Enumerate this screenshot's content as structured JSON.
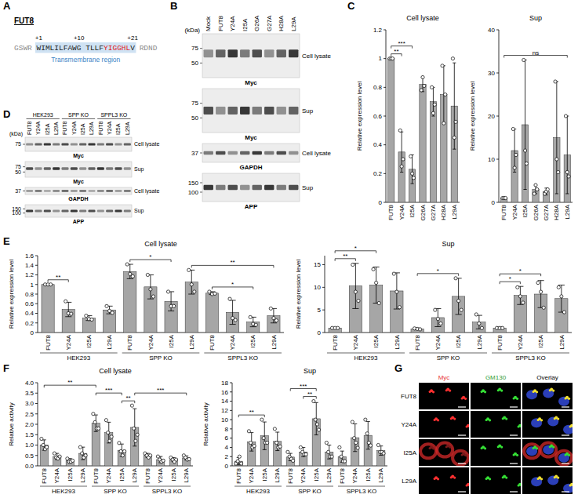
{
  "panel_labels": [
    "A",
    "B",
    "C",
    "D",
    "E",
    "F",
    "G"
  ],
  "sequence": {
    "title": "FUT8",
    "segments": [
      {
        "text": "GSWR",
        "style": "flank"
      },
      {
        "text": "WIMLILFAWG TLLF",
        "style": "tm"
      },
      {
        "text": "YIGGHL",
        "style": "tm_red"
      },
      {
        "text": "V",
        "style": "tm"
      },
      {
        "text": "RDND",
        "style": "flank"
      }
    ],
    "positions": [
      "+1",
      "+10",
      "+21"
    ],
    "region_label": "Transmembrane region"
  },
  "blot_b": {
    "lanes": [
      "Mock",
      "FUT8",
      "Y24A",
      "I25A",
      "G26A",
      "G27A",
      "H28A",
      "L29A"
    ],
    "unit": "(kDa)",
    "rows": [
      {
        "markers": [
          75,
          50
        ],
        "fraction": "Cell lysate",
        "antibody": "Myc"
      },
      {
        "markers": [
          75,
          50
        ],
        "fraction": "Sup",
        "antibody": "Myc"
      },
      {
        "markers": [
          37
        ],
        "fraction": "Cell lysate",
        "antibody": "GAPDH"
      },
      {
        "markers": [
          150,
          100
        ],
        "fraction": "Sup",
        "antibody": "APP"
      }
    ]
  },
  "blot_d": {
    "groups": [
      "HEK293",
      "SPP KO",
      "SPPL3 KO"
    ],
    "lanes": [
      "FUT8",
      "Y24A",
      "I25A",
      "L29A"
    ],
    "unit": "(kDa)",
    "rows": [
      {
        "markers": [
          75
        ],
        "fraction": "Cell lysate",
        "antibody": "Myc"
      },
      {
        "markers": [
          75,
          50
        ],
        "fraction": "Sup",
        "antibody": "Myc"
      },
      {
        "markers": [
          37
        ],
        "fraction": "Cell lysate",
        "antibody": "GAPDH"
      },
      {
        "markers": [
          150,
          100
        ],
        "fraction": "Sup",
        "antibody": "APP"
      }
    ]
  },
  "chart_data": [
    {
      "type": "bar",
      "title": "Cell lysate",
      "y_label": "Relative expression level",
      "color": "#a6a6a6",
      "categories": [
        "FUT8",
        "Y24A",
        "I25A",
        "G26A",
        "G27A",
        "H28A",
        "L29A"
      ],
      "values": [
        1.0,
        0.35,
        0.23,
        0.82,
        0.7,
        0.75,
        0.67
      ],
      "errors": [
        0,
        0.14,
        0.1,
        0.05,
        0.1,
        0.2,
        0.3
      ],
      "points": [
        [
          1,
          1,
          1
        ],
        [
          0.5,
          0.25,
          0.3
        ],
        [
          0.32,
          0.2,
          0.17
        ],
        [
          0.78,
          0.87,
          0.81
        ],
        [
          0.8,
          0.62,
          0.68
        ],
        [
          0.95,
          0.55,
          0.75
        ],
        [
          1.0,
          0.45,
          0.56
        ]
      ],
      "ylim": [
        0,
        1.2
      ],
      "yticks": [
        0,
        0.2,
        0.4,
        0.6,
        0.8,
        1,
        1.2
      ],
      "significance": [
        {
          "from": 0,
          "to": 1,
          "label": "**"
        },
        {
          "from": 0,
          "to": 2,
          "label": "***"
        }
      ]
    },
    {
      "type": "bar",
      "title": "Sup",
      "y_label": "Relative expression level",
      "color": "#a6a6a6",
      "categories": [
        "FUT8",
        "Y24A",
        "I25A",
        "G26A",
        "G27A",
        "H28A",
        "L29A"
      ],
      "values": [
        1,
        12,
        18,
        3,
        2.5,
        15,
        11
      ],
      "errors": [
        0,
        5,
        15,
        1,
        0.8,
        13,
        9
      ],
      "points": [
        [
          1,
          1,
          1
        ],
        [
          17,
          8,
          11
        ],
        [
          33,
          12,
          9
        ],
        [
          2,
          4,
          3
        ],
        [
          2,
          2.5,
          3
        ],
        [
          28,
          10,
          7
        ],
        [
          20,
          7,
          6
        ]
      ],
      "ylim": [
        0,
        40
      ],
      "yticks": [
        0,
        10,
        20,
        30,
        40
      ],
      "significance": [
        {
          "from": 0,
          "to": 6,
          "label": "ns"
        }
      ]
    },
    {
      "type": "bar",
      "title": "Cell lysate",
      "y_label": "Relative expression level",
      "color": "#a6a6a6",
      "categories": [
        "FUT8",
        "Y24A",
        "I25A",
        "L29A",
        "FUT8",
        "Y24A",
        "I25A",
        "L29A",
        "FUT8",
        "Y24A",
        "I25A",
        "L29A"
      ],
      "groups": [
        "HEK293",
        "SPP KO",
        "SPPL3 KO"
      ],
      "values": [
        1.0,
        0.48,
        0.3,
        0.47,
        1.27,
        0.95,
        0.65,
        1.05,
        0.82,
        0.42,
        0.22,
        0.35
      ],
      "errors": [
        0,
        0.15,
        0.05,
        0.08,
        0.15,
        0.25,
        0.2,
        0.25,
        0.03,
        0.25,
        0.1,
        0.15
      ],
      "points": [
        [
          1,
          1,
          1
        ],
        [
          0.65,
          0.4,
          0.39
        ],
        [
          0.35,
          0.28,
          0.27
        ],
        [
          0.55,
          0.45,
          0.41
        ],
        [
          1.42,
          1.22,
          1.17
        ],
        [
          1.2,
          0.9,
          0.75
        ],
        [
          0.85,
          0.55,
          0.55
        ],
        [
          1.3,
          1.0,
          0.85
        ],
        [
          0.85,
          0.8,
          0.81
        ],
        [
          0.7,
          0.3,
          0.26
        ],
        [
          0.32,
          0.18,
          0.16
        ],
        [
          0.5,
          0.3,
          0.25
        ]
      ],
      "ylim": [
        0,
        1.6
      ],
      "yticks": [
        0,
        0.2,
        0.4,
        0.6,
        0.8,
        1,
        1.2,
        1.4,
        1.6
      ],
      "significance": [
        {
          "from": 0,
          "to": 1,
          "label": "**"
        },
        {
          "from": 4,
          "to": 6,
          "label": "*"
        },
        {
          "from": 8,
          "to": 10,
          "label": "*"
        },
        {
          "from": 7,
          "to": 11,
          "label": "**"
        }
      ]
    },
    {
      "type": "bar",
      "title": "Sup",
      "y_label": "Relative expression level",
      "color": "#a6a6a6",
      "categories": [
        "FUT8",
        "Y24A",
        "I25A",
        "L29A",
        "FUT8",
        "Y24A",
        "I25A",
        "L29A",
        "FUT8",
        "Y24A",
        "I25A",
        "L29A"
      ],
      "groups": [
        "HEK293",
        "SPP KO",
        "SPPL3 KO"
      ],
      "values": [
        1,
        10.3,
        10.5,
        9.2,
        0.8,
        3.3,
        8,
        2.3,
        1,
        8.2,
        8.5,
        7.5
      ],
      "errors": [
        0,
        5,
        4,
        4,
        0.2,
        2,
        4,
        1.5,
        0.2,
        2,
        3,
        3
      ],
      "points": [
        [
          1,
          1,
          1
        ],
        [
          15,
          9,
          7
        ],
        [
          14,
          11,
          6.5
        ],
        [
          13,
          9,
          5.6
        ],
        [
          0.9,
          0.8,
          0.7
        ],
        [
          5,
          3,
          2
        ],
        [
          12,
          7,
          5
        ],
        [
          4,
          2,
          1
        ],
        [
          1,
          1,
          1
        ],
        [
          10,
          8,
          6.6
        ],
        [
          11,
          9,
          5.5
        ],
        [
          10,
          8,
          4.5
        ]
      ],
      "ylim": [
        0,
        17
      ],
      "yticks": [
        0,
        5,
        10,
        15
      ],
      "significance": [
        {
          "from": 0,
          "to": 1,
          "label": "**"
        },
        {
          "from": 0,
          "to": 2,
          "label": "*"
        },
        {
          "from": 4,
          "to": 6,
          "label": "*"
        },
        {
          "from": 8,
          "to": 9,
          "label": "*"
        },
        {
          "from": 8,
          "to": 10,
          "label": "*"
        }
      ]
    },
    {
      "type": "bar",
      "title": "Cell lysate",
      "y_label": "Relative activity",
      "color": "#a6a6a6",
      "categories": [
        "FUT8",
        "Y24A",
        "I25A",
        "L29A",
        "FUT8",
        "Y24A",
        "I25A",
        "L29A",
        "FUT8",
        "Y24A",
        "I25A",
        "L29A"
      ],
      "groups": [
        "HEK293",
        "SPP KO",
        "SPPL3 KO"
      ],
      "values": [
        1.0,
        0.45,
        0.25,
        0.6,
        2.05,
        1.6,
        0.75,
        1.85,
        0.5,
        0.3,
        0.3,
        0.38
      ],
      "errors": [
        0.25,
        0.15,
        0.1,
        0.3,
        0.4,
        0.5,
        0.3,
        0.9,
        0.1,
        0.15,
        0.1,
        0.1
      ],
      "points": [
        [
          1.3,
          1.0,
          0.8,
          0.9
        ],
        [
          0.6,
          0.4,
          0.35,
          0.45
        ],
        [
          0.35,
          0.2,
          0.2,
          0.25
        ],
        [
          0.9,
          0.6,
          0.4,
          0.5
        ],
        [
          2.5,
          2.1,
          1.8,
          1.8
        ],
        [
          2.2,
          1.6,
          1.2,
          1.4
        ],
        [
          1.1,
          0.7,
          0.5,
          0.7
        ],
        [
          2.9,
          1.8,
          1.2,
          1.5
        ],
        [
          0.6,
          0.5,
          0.4,
          0.5
        ],
        [
          0.45,
          0.3,
          0.2,
          0.25
        ],
        [
          0.4,
          0.3,
          0.2,
          0.3
        ],
        [
          0.5,
          0.4,
          0.3,
          0.32
        ]
      ],
      "ylim": [
        0,
        4.0
      ],
      "yticks": [
        {
          "value": 0,
          "label": "0.0"
        },
        {
          "value": 0.5,
          "label": "0.5"
        },
        {
          "value": 1,
          "label": "1.0"
        },
        {
          "value": 1.5,
          "label": "1.5"
        },
        {
          "value": 2,
          "label": "2.0"
        },
        {
          "value": 2.5,
          "label": "2.5"
        },
        {
          "value": 3,
          "label": "3.0"
        },
        {
          "value": 3.5,
          "label": "3.5"
        },
        {
          "value": 4,
          "label": "4.0"
        }
      ],
      "significance": [
        {
          "from": 6,
          "to": 7,
          "label": "**"
        },
        {
          "from": 4,
          "to": 6,
          "label": "***"
        },
        {
          "from": 0,
          "to": 4,
          "label": "**"
        },
        {
          "from": 7,
          "to": 11,
          "label": "***"
        }
      ]
    },
    {
      "type": "bar",
      "title": "Sup",
      "y_label": "Relative activity",
      "color": "#a6a6a6",
      "categories": [
        "FUT8",
        "Y24A",
        "I25A",
        "L29A",
        "FUT8",
        "Y24A",
        "I25A",
        "L29A",
        "FUT8",
        "Y24A",
        "I25A",
        "L29A"
      ],
      "groups": [
        "HEK293",
        "SPP KO",
        "SPPL3 KO"
      ],
      "values": [
        1,
        5.2,
        6.5,
        5.3,
        1.9,
        3,
        10.2,
        3,
        2,
        6.1,
        6.6,
        3.3
      ],
      "errors": [
        0.8,
        2,
        3,
        2,
        0.8,
        1,
        3.5,
        1.5,
        1.2,
        3,
        3,
        1
      ],
      "points": [
        [
          0.5,
          1,
          2,
          0.5
        ],
        [
          7.5,
          5,
          4,
          4.3
        ],
        [
          10,
          6,
          5,
          5
        ],
        [
          8,
          5,
          4,
          4.2
        ],
        [
          3,
          2,
          1.5,
          1.1
        ],
        [
          4,
          3,
          2.5,
          2.5
        ],
        [
          14,
          10,
          9,
          7.8
        ],
        [
          5,
          3,
          2,
          2
        ],
        [
          4,
          2,
          1,
          1
        ],
        [
          9.5,
          6,
          5,
          3.9
        ],
        [
          10,
          7,
          5,
          4.4
        ],
        [
          4.5,
          3,
          3,
          2.7
        ]
      ],
      "ylim": [
        0,
        18
      ],
      "yticks": [
        0,
        2,
        4,
        6,
        8,
        10,
        12,
        14,
        16,
        18
      ],
      "significance": [
        {
          "from": 0,
          "to": 2,
          "label": "**"
        },
        {
          "from": 5,
          "to": 6,
          "label": "**"
        },
        {
          "from": 4,
          "to": 6,
          "label": "***"
        }
      ]
    }
  ],
  "microscopy": {
    "columns": [
      "Myc",
      "GM130",
      "Overlay"
    ],
    "rows": [
      "FUT8",
      "Y24A",
      "I25A",
      "L29A"
    ]
  }
}
